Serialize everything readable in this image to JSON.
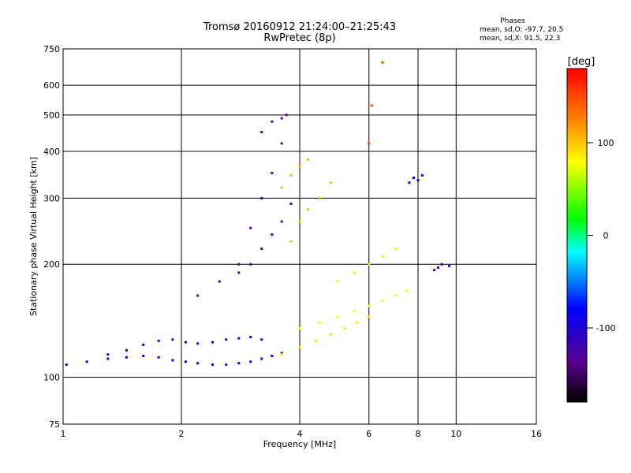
{
  "header": {
    "title": "Tromsø 20160912 21:24:00–21:25:43",
    "subtitle": "RwPretec (8p)"
  },
  "stats": {
    "heading": "Phases",
    "line_o": "mean, sd,O: -97.7, 20.5",
    "line_x": "mean, sd,X:  91.5, 22.3"
  },
  "chart_data": {
    "type": "scatter",
    "title": "Tromsø 20160912 21:24:00–21:25:43",
    "subtitle": "RwPretec (8p)",
    "xlabel": "Frequency [MHz]",
    "ylabel": "Stationary phase Virtual Height [km]",
    "x_scale": "log",
    "y_scale": "log",
    "xlim": [
      1,
      16
    ],
    "ylim": [
      75,
      750
    ],
    "x_ticks": [
      1,
      2,
      4,
      6,
      8,
      10,
      16
    ],
    "x_tick_labels": [
      "1",
      "2",
      "4",
      "6",
      "8",
      "10",
      "16"
    ],
    "y_ticks": [
      75,
      100,
      200,
      300,
      400,
      500,
      600,
      750
    ],
    "y_tick_labels": [
      "75",
      "100",
      "200",
      "300",
      "400",
      "500",
      "600",
      "750"
    ],
    "grid": true,
    "colorbar": {
      "label": "[deg]",
      "ticks": [
        100,
        0,
        -100
      ],
      "tick_labels": [
        "100",
        "0",
        "-100"
      ],
      "range": [
        -180,
        180
      ],
      "colors": [
        "#000000",
        "#5a0090",
        "#0000ff",
        "#00ffff",
        "#00ff00",
        "#ffff00",
        "#ff8000",
        "#ff0000"
      ]
    },
    "series": [
      {
        "x": [
          1.02,
          1.15,
          1.3,
          1.45,
          1.6,
          1.75,
          1.9,
          2.05,
          2.2,
          2.4,
          2.6,
          2.8,
          3.0,
          3.2,
          3.4,
          3.6
        ],
        "y": [
          108,
          110,
          112,
          113,
          114,
          113,
          111,
          110,
          109,
          108,
          108,
          109,
          110,
          112,
          114,
          116
        ],
        "phase": -85
      },
      {
        "x": [
          1.3,
          1.45,
          1.6,
          1.75,
          1.9,
          2.05,
          2.2,
          2.4,
          2.6,
          2.8,
          3.0,
          3.2
        ],
        "y": [
          115,
          118,
          122,
          125,
          126,
          124,
          123,
          124,
          126,
          127,
          128,
          126
        ],
        "phase": -110
      },
      {
        "x": [
          2.2,
          2.5,
          2.8,
          3.0,
          3.2,
          3.4,
          3.6,
          3.8
        ],
        "y": [
          165,
          180,
          190,
          200,
          220,
          240,
          260,
          290
        ],
        "phase": -120
      },
      {
        "x": [
          2.8,
          3.0,
          3.2,
          3.4,
          3.6
        ],
        "y": [
          200,
          250,
          300,
          350,
          420
        ],
        "phase": -130
      },
      {
        "x": [
          3.2,
          3.4,
          3.6,
          3.7
        ],
        "y": [
          450,
          480,
          490,
          500
        ],
        "phase": -135
      },
      {
        "x": [
          3.8,
          4.0,
          4.2,
          4.5,
          4.8
        ],
        "y": [
          230,
          260,
          280,
          300,
          330
        ],
        "phase": 100
      },
      {
        "x": [
          3.6,
          3.8,
          4.0,
          4.2
        ],
        "y": [
          320,
          345,
          365,
          380
        ],
        "phase": 105
      },
      {
        "x": [
          3.6,
          4.0,
          4.4,
          4.8,
          5.2,
          5.6,
          6.0
        ],
        "y": [
          115,
          120,
          125,
          130,
          135,
          140,
          145
        ],
        "phase": 90
      },
      {
        "x": [
          4.0,
          4.5,
          5.0,
          5.5,
          6.0,
          6.5,
          7.0,
          7.5
        ],
        "y": [
          135,
          140,
          145,
          150,
          155,
          160,
          165,
          170
        ],
        "phase": 80
      },
      {
        "x": [
          5.0,
          5.5,
          6.0,
          6.5,
          7.0
        ],
        "y": [
          180,
          190,
          200,
          210,
          220
        ],
        "phase": 70
      },
      {
        "x": [
          8.8,
          9.0,
          9.2,
          9.6
        ],
        "y": [
          193,
          196,
          200,
          198
        ],
        "phase": -110
      },
      {
        "x": [
          7.6,
          7.8,
          8.0,
          8.2
        ],
        "y": [
          330,
          340,
          335,
          345
        ],
        "phase": -90
      },
      {
        "x": [
          6.0,
          6.1,
          6.5
        ],
        "y": [
          420,
          530,
          690
        ],
        "phase": 150
      }
    ]
  }
}
